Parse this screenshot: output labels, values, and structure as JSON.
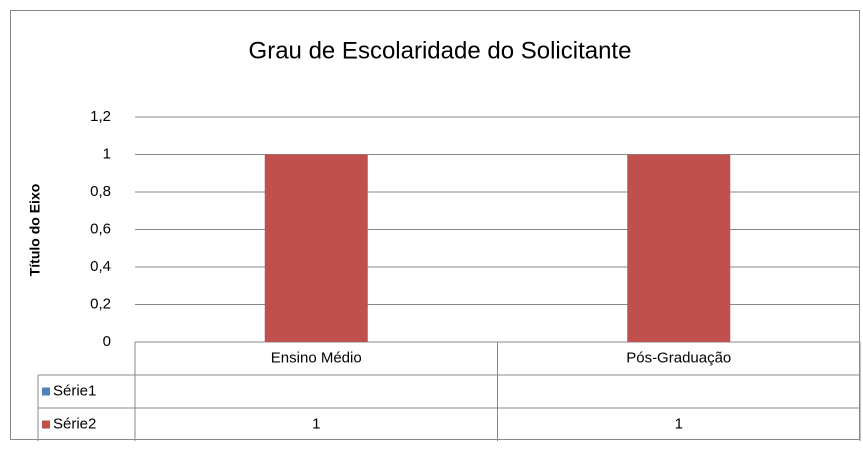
{
  "chart_data": {
    "type": "bar",
    "title": "Grau de Escolaridade do Solicitante",
    "y_axis_title": "Título do Eixo",
    "categories": [
      "Ensino Médio",
      "Pós-Graduação"
    ],
    "series": [
      {
        "name": "Série1",
        "color": "#4f81bd",
        "values": [
          null,
          null
        ]
      },
      {
        "name": "Série2",
        "color": "#c0504d",
        "values": [
          1,
          1
        ]
      }
    ],
    "ylim": [
      0,
      1.2
    ],
    "yticks": [
      0,
      {
        "value": 0.2,
        "label": "0,2"
      },
      {
        "value": 0.4,
        "label": "0,4"
      },
      {
        "value": 0.6,
        "label": "0,6"
      },
      {
        "value": 0.8,
        "label": "0,8"
      },
      1,
      {
        "value": 1.2,
        "label": "1,2"
      }
    ],
    "grid": true,
    "data_table": true
  }
}
